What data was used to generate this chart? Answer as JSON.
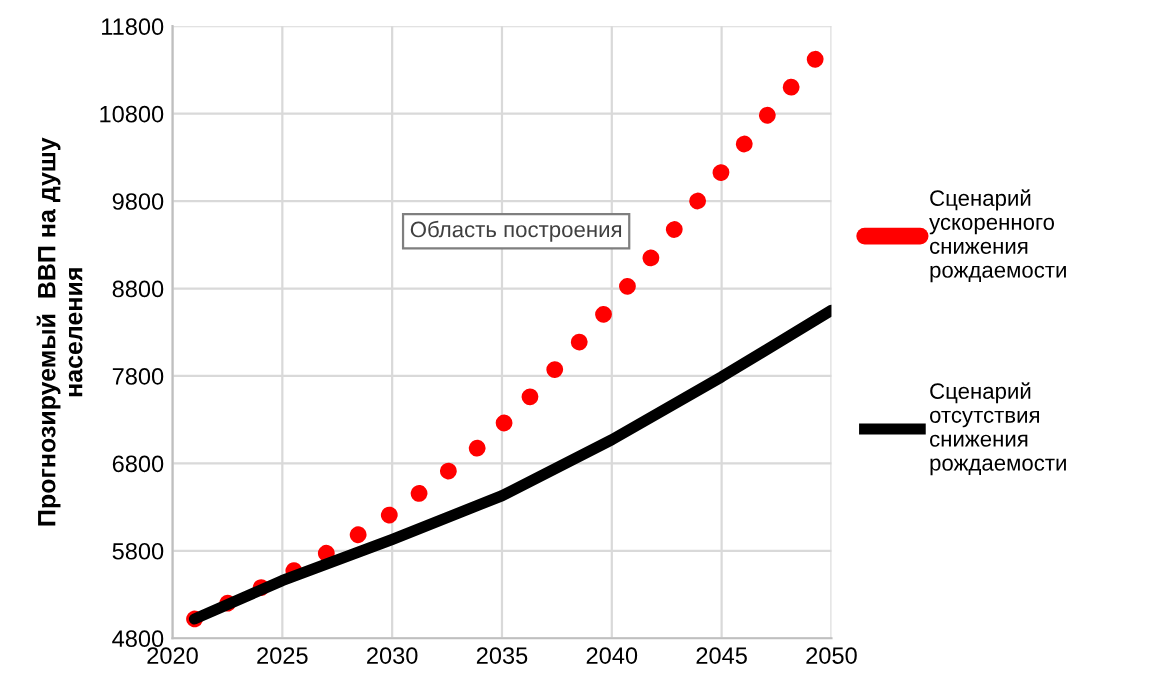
{
  "chart_data": {
    "type": "line",
    "ylabel": "Прогнозируемый  ВВП на душу\nнаселения",
    "annotations": [
      "Область построения"
    ],
    "xlim": [
      2020,
      2050
    ],
    "xticks": [
      2020,
      2025,
      2030,
      2035,
      2040,
      2045,
      2050
    ],
    "ylim": [
      4800,
      11800
    ],
    "yticks": [
      4800,
      5800,
      6800,
      7800,
      8800,
      9800,
      10800,
      11800
    ],
    "grid": true,
    "legend": "right",
    "series": [
      {
        "name": "Сценарий\nускоренного\nснижения\nрождаемости",
        "color": "#ff0000",
        "line_style": "dotted",
        "x": [
          2021,
          2022,
          2023,
          2024.4,
          2025.5,
          2027.8,
          2030,
          2032,
          2034,
          2035.8,
          2037.5,
          2039.2,
          2040.9,
          2042.5,
          2044.1,
          2045.7,
          2047.3,
          2049.8
        ],
        "values": [
          5020,
          5140,
          5260,
          5420,
          5570,
          5880,
          6230,
          6600,
          7000,
          7430,
          7900,
          8380,
          8880,
          9370,
          9860,
          10350,
          10850,
          11580
        ]
      },
      {
        "name": "Сценарий\nотсутствия\nснижения\nрождаемости",
        "color": "#000000",
        "line_style": "solid",
        "x": [
          2021,
          2025,
          2030,
          2035,
          2040,
          2045,
          2050
        ],
        "values": [
          5020,
          5460,
          5930,
          6430,
          7070,
          7790,
          8550
        ]
      }
    ]
  }
}
